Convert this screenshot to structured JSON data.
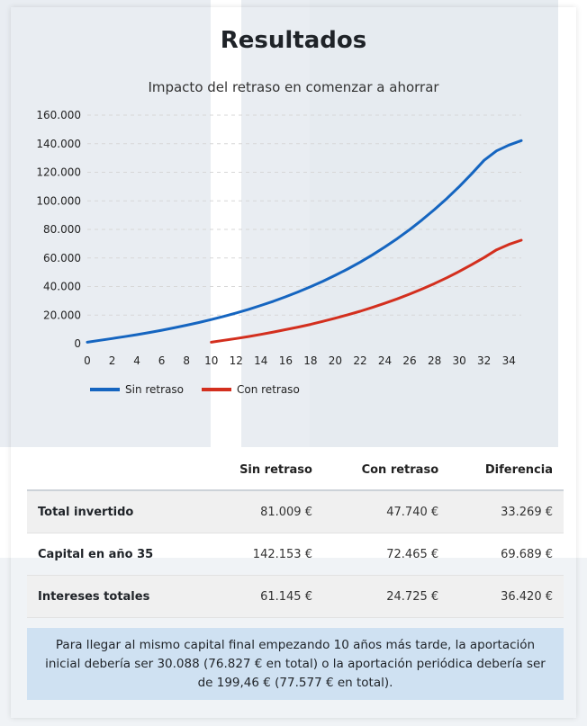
{
  "page": {
    "title": "Resultados"
  },
  "chart_data": {
    "type": "line",
    "title": "Impacto del retraso en comenzar a ahorrar",
    "xlabel": "",
    "ylabel": "",
    "xlim": [
      0,
      35
    ],
    "ylim": [
      0,
      160000
    ],
    "x_ticks": [
      "0",
      "2",
      "4",
      "6",
      "8",
      "10",
      "12",
      "14",
      "16",
      "18",
      "20",
      "22",
      "24",
      "26",
      "28",
      "30",
      "32",
      "34"
    ],
    "y_ticks": [
      "0",
      "20.000",
      "40.000",
      "60.000",
      "80.000",
      "100.000",
      "120.000",
      "140.000",
      "160.000"
    ],
    "grid": true,
    "legend_position": "bottom-left",
    "series": [
      {
        "name": "Sin retraso",
        "color": "#1565c0",
        "x": [
          0,
          1,
          2,
          3,
          4,
          5,
          6,
          7,
          8,
          9,
          10,
          11,
          12,
          13,
          14,
          15,
          16,
          17,
          18,
          19,
          20,
          21,
          22,
          23,
          24,
          25,
          26,
          27,
          28,
          29,
          30,
          31,
          32,
          33,
          34,
          35
        ],
        "values": [
          1000,
          2300,
          3600,
          4900,
          6300,
          7800,
          9400,
          11100,
          12900,
          14800,
          16900,
          19100,
          21500,
          24000,
          26800,
          29700,
          32800,
          36200,
          39800,
          43700,
          47900,
          52300,
          57100,
          62200,
          67700,
          73600,
          79900,
          86700,
          93900,
          101700,
          110000,
          118900,
          128400,
          135000,
          139000,
          142153
        ]
      },
      {
        "name": "Con retraso",
        "color": "#d32f1e",
        "x": [
          10,
          11,
          12,
          13,
          14,
          15,
          16,
          17,
          18,
          19,
          20,
          21,
          22,
          23,
          24,
          25,
          26,
          27,
          28,
          29,
          30,
          31,
          32,
          33,
          34,
          35
        ],
        "values": [
          1000,
          2300,
          3600,
          5000,
          6500,
          8100,
          9800,
          11600,
          13500,
          15600,
          17800,
          20200,
          22700,
          25400,
          28300,
          31400,
          34700,
          38300,
          42100,
          46200,
          50600,
          55300,
          60300,
          65700,
          69500,
          72465
        ]
      }
    ]
  },
  "table": {
    "headers": [
      "",
      "Sin retraso",
      "Con retraso",
      "Diferencia"
    ],
    "rows": [
      [
        "Total invertido",
        "81.009 €",
        "47.740 €",
        "33.269 €"
      ],
      [
        "Capital en año 35",
        "142.153 €",
        "72.465 €",
        "69.689 €"
      ],
      [
        "Intereses totales",
        "61.145 €",
        "24.725 €",
        "36.420 €"
      ]
    ]
  },
  "note": "Para llegar al mismo capital final empezando 10 años más tarde, la aportación inicial debería ser 30.088 (76.827 € en total) o la aportación periódica debería ser de 199,46 € (77.577 € en total)."
}
